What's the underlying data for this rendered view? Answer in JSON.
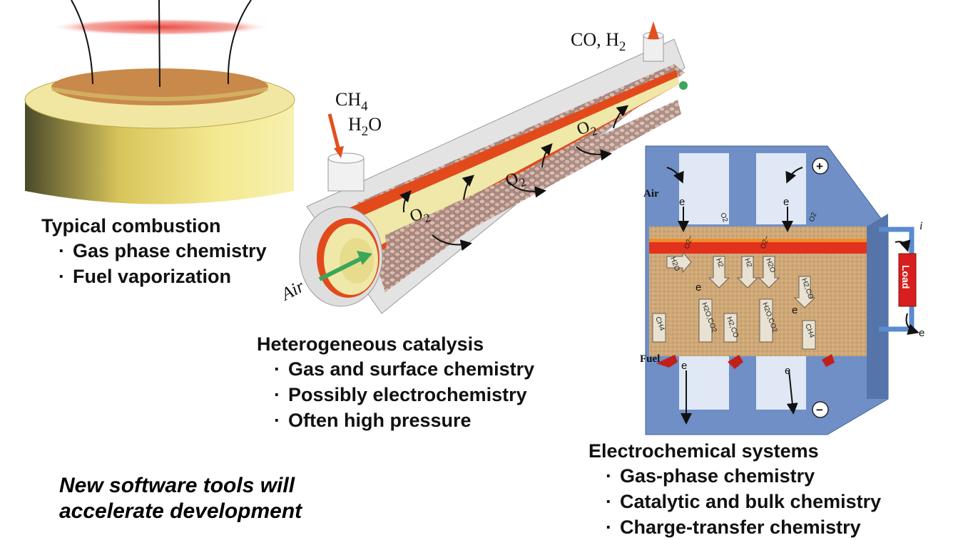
{
  "panels": {
    "combustion": {
      "title": "Typical combustion",
      "bullets": [
        "Gas phase chemistry",
        "Fuel vaporization"
      ]
    },
    "heterogeneous": {
      "title": "Heterogeneous catalysis",
      "bullets": [
        "Gas and surface chemistry",
        "Possibly electrochemistry",
        "Often high pressure"
      ]
    },
    "electrochemical": {
      "title": "Electrochemical systems",
      "bullets": [
        "Gas-phase chemistry",
        "Catalytic and bulk chemistry",
        "Charge-transfer chemistry"
      ]
    }
  },
  "tagline": {
    "line1": "New software tools will",
    "line2": "accelerate development"
  },
  "reactor_labels": {
    "outlet": "CO, H",
    "outlet_sub": "2",
    "inlet_ch4": "CH",
    "inlet_ch4_sub": "4",
    "inlet_h2o_a": "H",
    "inlet_h2o_sub": "2",
    "inlet_h2o_b": "O",
    "air": "Air",
    "o2": "O",
    "o2_sub": "2"
  },
  "fuel_cell_labels": {
    "air": "Air",
    "fuel": "Fuel",
    "electron": "e",
    "load": "Load",
    "current": "i",
    "plus": "+",
    "minus": "−",
    "species": [
      "O2",
      "O2",
      "O2−",
      "O2−",
      "H2O",
      "H2",
      "H2",
      "H2O",
      "H2,CO",
      "H2O,CO2",
      "H2O,CO2",
      "CH4",
      "H2,CO",
      "CH4"
    ]
  },
  "colors": {
    "burner_body": "#e6d56a",
    "burner_top": "#c98b4a",
    "flame": "#e8413a",
    "tube_outer": "#dcdcdc",
    "tube_red": "#e24a1c",
    "tube_inner": "#efe8a8",
    "pebbles": "#c9a195",
    "air_arrow": "#3aa65a",
    "inlet_arrow": "#e2501e",
    "frame_blue": "#6f8fc6",
    "electrode_tan": "#d2ac7a",
    "electrolyte_red": "#e2321e",
    "load_red": "#d81e1e"
  },
  "icons": [
    "gas-flow-arrow",
    "electron-arrow",
    "species-arrow",
    "plus-terminal-icon",
    "minus-terminal-icon"
  ]
}
